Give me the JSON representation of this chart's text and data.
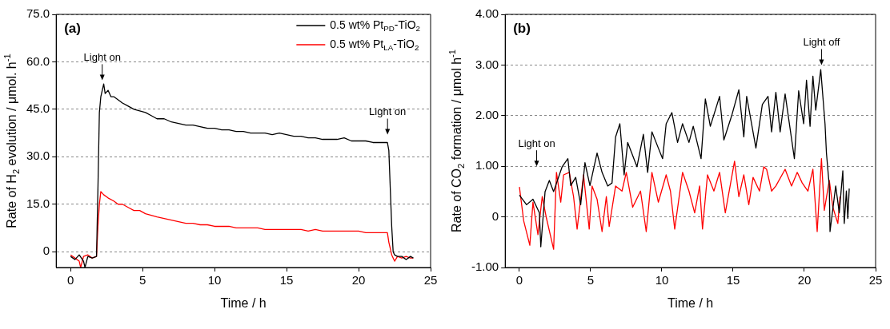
{
  "chart_data": [
    {
      "type": "line",
      "title": "(a)",
      "xlabel": "Time / h",
      "ylabel": "Rate of H$_{2}$ evolution / μmol. h$^{-1}$",
      "xlim": [
        -1,
        25
      ],
      "xticks": [
        0,
        5,
        10,
        15,
        20,
        25
      ],
      "ylim": [
        -5,
        75
      ],
      "yticks": [
        0,
        {
          "value": 15,
          "label": "15.0"
        },
        {
          "value": 30,
          "label": "30.0"
        },
        {
          "value": 45,
          "label": "45.0"
        },
        {
          "value": 60,
          "label": "60.0"
        },
        {
          "value": 75,
          "label": "75.0"
        }
      ],
      "grid": "y",
      "legend": "top right",
      "marker": "none",
      "line_style": "solid",
      "annotations": [
        "Light on",
        "Light on"
      ],
      "series": [
        {
          "name": "0.5 wt% Pt$_{PD}$-TiO$_{2}$",
          "color": "#000000",
          "x": [
            0,
            0.3,
            0.6,
            0.9,
            1.0,
            1.2,
            1.5,
            1.8,
            1.9,
            2.0,
            2.1,
            2.3,
            2.4,
            2.6,
            2.8,
            3.0,
            3.3,
            3.6,
            4.0,
            4.4,
            4.8,
            5.2,
            5.6,
            6.0,
            6.5,
            7.0,
            7.5,
            8.0,
            8.5,
            9.0,
            9.5,
            10.0,
            10.5,
            11.0,
            11.5,
            12.0,
            12.5,
            13.0,
            13.5,
            14.0,
            14.5,
            15.0,
            15.5,
            16.0,
            16.5,
            17.0,
            17.5,
            18.0,
            18.5,
            19.0,
            19.5,
            20.0,
            20.5,
            21.0,
            21.5,
            22.0,
            22.1,
            22.2,
            22.3,
            22.4,
            22.5,
            22.7,
            23.0,
            23.3,
            23.6,
            23.8
          ],
          "values": [
            -1.5,
            -2.5,
            -1,
            -3,
            -5,
            -1.5,
            -2,
            -1.5,
            20,
            44,
            49,
            53,
            50,
            51,
            49,
            49,
            48,
            47,
            46,
            45,
            44.5,
            44,
            43,
            42,
            42,
            41,
            40.5,
            40,
            40,
            39.5,
            39,
            39,
            38.5,
            38.5,
            38,
            38,
            37.5,
            37.5,
            37.5,
            37,
            37.5,
            37,
            36.5,
            36.5,
            36,
            36,
            35.5,
            35.5,
            35.5,
            36,
            35,
            35,
            35,
            34.5,
            34.5,
            34.5,
            32,
            20,
            8,
            0,
            -1,
            -1.5,
            -1.5,
            -2.5,
            -1.5,
            -2
          ]
        },
        {
          "name": "0.5 wt% Pt$_{LA}$-TiO$_{2}$",
          "color": "#ff0000",
          "x": [
            0,
            0.3,
            0.6,
            0.7,
            0.9,
            1.2,
            1.5,
            1.8,
            1.9,
            2.0,
            2.1,
            2.3,
            2.6,
            3.0,
            3.3,
            3.6,
            4.0,
            4.4,
            4.8,
            5.2,
            5.6,
            6.0,
            6.5,
            7.0,
            7.5,
            8.0,
            8.5,
            9.0,
            9.5,
            10.0,
            10.5,
            11.0,
            11.5,
            12.0,
            12.5,
            13.0,
            13.5,
            14.0,
            14.5,
            15.0,
            15.5,
            16.0,
            16.5,
            17.0,
            17.5,
            18.0,
            18.5,
            19.0,
            19.5,
            20.0,
            20.5,
            21.0,
            21.5,
            22.0,
            22.1,
            22.2,
            22.3,
            22.5,
            22.7,
            23.0,
            23.3,
            23.6,
            23.8
          ],
          "values": [
            -1,
            -2,
            -3,
            -5,
            -1.5,
            -1,
            -2,
            -1.5,
            8,
            15,
            19,
            18,
            17,
            16,
            15,
            15,
            14,
            13,
            13,
            12,
            11.5,
            11,
            10.5,
            10,
            9.5,
            9,
            9,
            8.5,
            8.5,
            8,
            8,
            8,
            7.5,
            7.5,
            7.5,
            7.5,
            7,
            7,
            7,
            7,
            7,
            7,
            6.5,
            7,
            6.5,
            6.5,
            6.5,
            6.5,
            6.5,
            6.5,
            6,
            6,
            6,
            6,
            3,
            1,
            -1,
            -3,
            -1.5,
            -2,
            -1.5,
            -2,
            -2
          ]
        }
      ]
    },
    {
      "type": "line",
      "title": "(b)",
      "xlabel": "Time / h",
      "ylabel": "Rate of CO$_{2}$ formation / μmol h$^{-1}$",
      "xlim": [
        -1,
        25
      ],
      "xticks": [
        0,
        5,
        10,
        15,
        20,
        25
      ],
      "ylim": [
        -1,
        4
      ],
      "yticks": [
        {
          "value": -1,
          "label": "-1.00"
        },
        0,
        {
          "value": 1,
          "label": "1.00"
        },
        {
          "value": 2,
          "label": "2.00"
        },
        {
          "value": 3,
          "label": "3.00"
        },
        {
          "value": 4,
          "label": "4.00"
        }
      ],
      "grid": "y",
      "marker": "none",
      "line_style": "solid",
      "annotations": [
        "Light on",
        "Light off"
      ],
      "series": [
        {
          "color": "#000000",
          "x": [
            0,
            0.5,
            0.95,
            1.4,
            1.5,
            1.8,
            2.1,
            2.4,
            3.0,
            3.4,
            3.6,
            3.95,
            4.3,
            4.6,
            4.95,
            5.45,
            5.8,
            6.2,
            6.5,
            6.75,
            7.05,
            7.35,
            7.6,
            8.25,
            8.7,
            9.0,
            9.3,
            9.75,
            10.05,
            10.3,
            10.7,
            11.1,
            11.45,
            11.9,
            12.2,
            12.75,
            13.05,
            13.4,
            14.05,
            14.35,
            14.9,
            15.4,
            15.75,
            15.95,
            16.6,
            17.05,
            17.45,
            17.7,
            18.0,
            18.3,
            18.65,
            19.3,
            19.6,
            19.95,
            20.15,
            20.4,
            20.6,
            20.8,
            21.15,
            21.45,
            21.55,
            21.75,
            21.8,
            22.2,
            22.45,
            22.7,
            22.8,
            22.95,
            23.05,
            23.15
          ],
          "values": [
            0.43,
            0.24,
            0.35,
            0.08,
            -0.59,
            0.5,
            0.72,
            0.5,
            0.99,
            1.15,
            0.62,
            0.78,
            0.24,
            1.07,
            0.62,
            1.26,
            0.88,
            0.61,
            0.67,
            1.58,
            1.84,
            0.83,
            1.47,
            0.99,
            1.63,
            0.88,
            1.68,
            1.36,
            1.15,
            1.84,
            2.06,
            1.47,
            1.84,
            1.47,
            1.79,
            1.15,
            2.33,
            1.79,
            2.38,
            1.52,
            2.0,
            2.51,
            1.58,
            2.38,
            1.36,
            2.22,
            2.38,
            1.68,
            2.46,
            1.68,
            2.43,
            1.15,
            2.49,
            1.84,
            2.7,
            1.79,
            2.78,
            2.11,
            2.91,
            1.84,
            1.26,
            0.61,
            -0.29,
            0.61,
            0.08,
            0.91,
            -0.13,
            0.51,
            -0.03,
            0.56
          ]
        },
        {
          "color": "#ff0000",
          "x": [
            0,
            0.3,
            0.73,
            0.95,
            1.3,
            1.6,
            1.9,
            2.4,
            2.6,
            2.9,
            3.1,
            3.5,
            3.8,
            4.05,
            4.5,
            4.9,
            5.1,
            5.45,
            5.8,
            6.1,
            6.3,
            6.75,
            7.2,
            7.5,
            7.95,
            8.5,
            8.9,
            9.3,
            9.75,
            10.3,
            10.6,
            10.9,
            11.45,
            11.9,
            12.3,
            12.65,
            12.85,
            13.2,
            13.65,
            14.05,
            14.45,
            15.1,
            15.4,
            15.75,
            16.1,
            16.4,
            16.85,
            17.15,
            17.35,
            17.7,
            18.0,
            18.65,
            19.1,
            19.5,
            19.85,
            20.25,
            20.6,
            20.9,
            21.2,
            21.4,
            21.75,
            22.0,
            22.35,
            22.5
          ],
          "values": [
            0.59,
            -0.08,
            -0.56,
            0.29,
            -0.35,
            0.4,
            -0.03,
            -0.64,
            0.88,
            0.29,
            0.83,
            0.88,
            0.4,
            -0.24,
            0.83,
            -0.24,
            0.61,
            0.35,
            -0.29,
            0.4,
            -0.19,
            0.61,
            0.51,
            0.88,
            0.19,
            0.51,
            -0.29,
            0.88,
            0.29,
            0.83,
            0.51,
            -0.24,
            0.88,
            0.51,
            0.08,
            0.61,
            -0.24,
            0.83,
            0.51,
            0.88,
            0.08,
            1.1,
            0.4,
            0.83,
            0.24,
            0.78,
            0.51,
            0.99,
            0.94,
            0.51,
            0.61,
            0.94,
            0.61,
            0.88,
            0.67,
            0.51,
            0.94,
            -0.29,
            1.15,
            0.13,
            0.72,
            0.19,
            -0.13,
            0.4
          ]
        }
      ]
    }
  ]
}
